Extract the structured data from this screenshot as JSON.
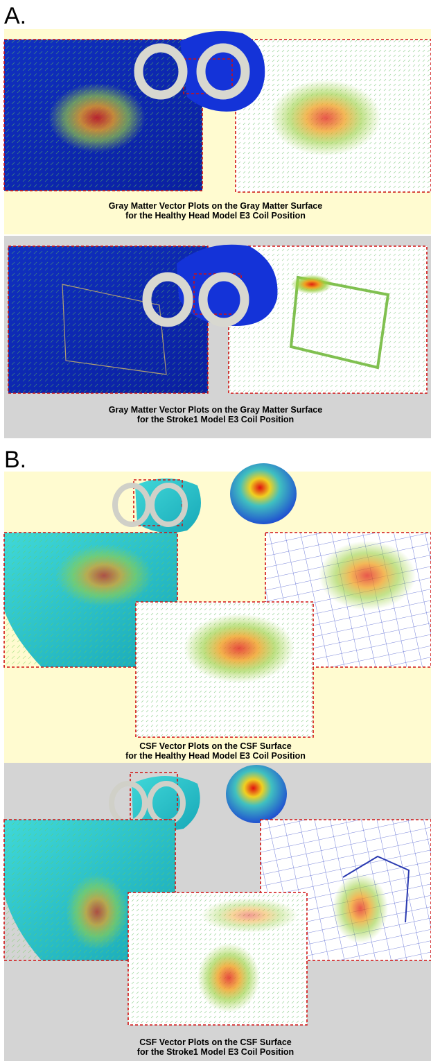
{
  "panels": [
    {
      "label": "A.",
      "rows": [
        {
          "caption": [
            "Gray Matter Vector Plots on the Gray Matter Surface",
            "for the Healthy Head  Model E3 Coil Position"
          ]
        },
        {
          "caption": [
            "Gray Matter Vector Plots on the Gray Matter Surface",
            "for the Stroke1 Model E3 Coil Position"
          ]
        }
      ]
    },
    {
      "label": "B.",
      "rows": [
        {
          "caption": [
            "CSF Vector Plots on the CSF Surface",
            "for the Healthy Head Model E3 Coil Position"
          ]
        },
        {
          "caption": [
            "CSF Vector Plots on the CSF Surface",
            "for the Stroke1 Model E3 Coil Position"
          ]
        }
      ]
    }
  ]
}
